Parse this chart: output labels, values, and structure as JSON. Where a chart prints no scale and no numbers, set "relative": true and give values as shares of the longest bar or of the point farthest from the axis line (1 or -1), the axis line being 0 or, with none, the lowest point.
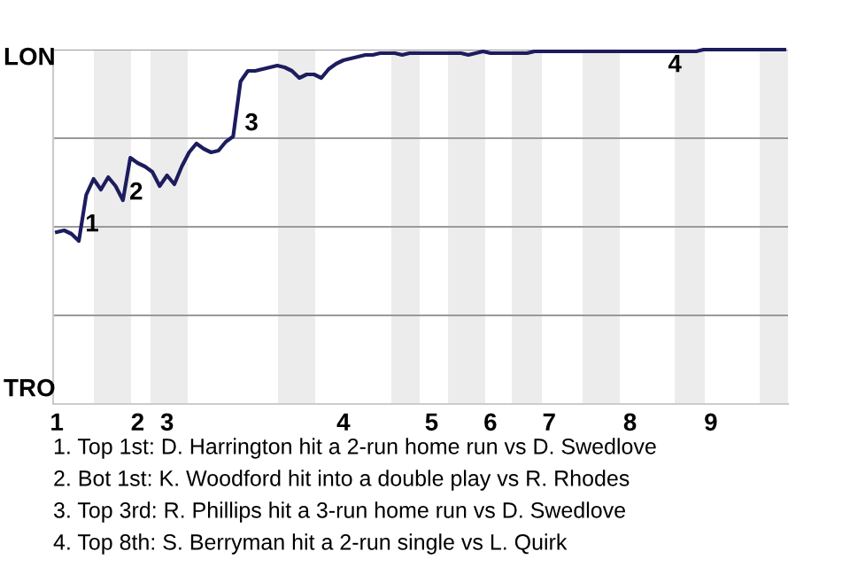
{
  "chart_data": {
    "type": "line",
    "relative": true,
    "categories": [
      "1",
      null,
      null,
      null,
      null,
      null,
      null,
      null,
      null,
      null,
      null,
      "2",
      null,
      null,
      null,
      "3",
      null,
      null,
      null,
      null,
      null,
      null,
      null,
      null,
      null,
      null,
      null,
      null,
      null,
      null,
      null,
      null,
      null,
      null,
      null,
      null,
      null,
      null,
      null,
      "4",
      null,
      null,
      null,
      null,
      null,
      null,
      null,
      null,
      null,
      null,
      null,
      "5",
      null,
      null,
      null,
      null,
      null,
      null,
      null,
      "6",
      null,
      null,
      null,
      null,
      null,
      null,
      null,
      "7",
      null,
      null,
      null,
      null,
      null,
      null,
      null,
      null,
      null,
      null,
      "8",
      null,
      null,
      null,
      null,
      null,
      null,
      null,
      null,
      null,
      null,
      "9",
      null,
      null,
      null,
      null,
      null,
      null,
      null,
      null,
      null,
      null
    ],
    "series": [
      {
        "color": "#1c1c5e",
        "values": [
          0.485,
          0.49,
          0.48,
          0.46,
          0.59,
          0.635,
          0.605,
          0.64,
          0.615,
          0.575,
          0.695,
          0.68,
          0.67,
          0.655,
          0.615,
          0.645,
          0.62,
          0.67,
          0.71,
          0.735,
          0.72,
          0.71,
          0.715,
          0.74,
          0.755,
          0.91,
          0.94,
          0.94,
          0.945,
          0.95,
          0.955,
          0.95,
          0.94,
          0.92,
          0.93,
          0.93,
          0.92,
          0.945,
          0.96,
          0.97,
          0.975,
          0.98,
          0.985,
          0.985,
          0.99,
          0.99,
          0.99,
          0.985,
          0.99,
          0.99,
          0.99,
          0.99,
          0.99,
          0.99,
          0.99,
          0.99,
          0.985,
          0.99,
          0.995,
          0.99,
          0.99,
          0.99,
          0.99,
          0.99,
          0.99,
          0.995,
          0.995,
          0.995,
          0.995,
          0.995,
          0.995,
          0.995,
          0.995,
          0.995,
          0.995,
          0.995,
          0.995,
          0.995,
          0.995,
          0.995,
          0.995,
          0.995,
          0.995,
          0.995,
          0.995,
          0.995,
          0.995,
          0.995,
          1,
          1,
          1,
          1,
          1,
          1,
          1,
          1,
          1,
          1,
          1,
          1
        ]
      }
    ],
    "grid": "y",
    "marker": "none",
    "line_style": "solid",
    "annotations": [
      "LON",
      "TRO",
      "1",
      "2",
      "3",
      "4",
      "1. Top 1st: D. Harrington hit a 2-run home run vs D. Swedlove",
      "2. Bot 1st: K. Woodford hit into a double play vs R. Rhodes",
      "3. Top 3rd: R. Phillips hit a 3-run home run vs D. Swedlove",
      "4. Top 8th: S. Berryman hit a 2-run single vs L. Quirk"
    ]
  }
}
